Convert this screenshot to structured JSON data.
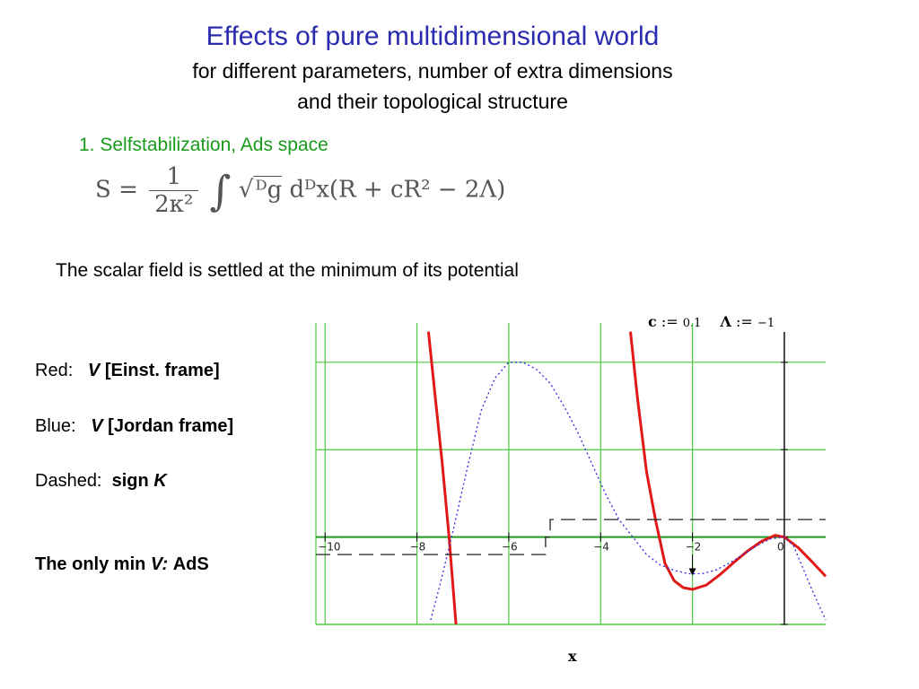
{
  "slide": {
    "title": "Effects of pure multidimensional world",
    "subtitle_line1": "for different parameters, number of extra dimensions",
    "subtitle_line2": "and their topological structure",
    "section": "1. Selfstabilization, Ads space",
    "formula": {
      "lhs": "S =",
      "numerator": "1",
      "denominator": "2κ²",
      "integral": "∫",
      "root": "ᴰg",
      "body": "dᴰx(R + cR² − 2Λ)"
    },
    "statement": "The scalar field is settled at the minimum of its potential",
    "legend": {
      "red_label": "Red:",
      "red_var": "V",
      "red_desc": "[Einst. frame]",
      "blue_label": "Blue:",
      "blue_var": "V",
      "blue_desc": "[Jordan frame]",
      "dashed_label": "Dashed:",
      "dashed_desc": "sign",
      "dashed_var": "K",
      "conclusion_prefix": "The only  min",
      "conclusion_var": "V:",
      "conclusion_suffix": "AdS"
    },
    "params": {
      "c_name": "c",
      "c_assign": ":=",
      "c_value": "0.1",
      "lambda_name": "Λ",
      "lambda_assign": ":=",
      "lambda_value": "−1"
    }
  },
  "chart_data": {
    "type": "line",
    "xlabel": "x",
    "xlim": [
      -10.2,
      0.9
    ],
    "ylim": [
      -1.0,
      2.45
    ],
    "x_ticks": [
      {
        "v": -10,
        "label": "−10"
      },
      {
        "v": -8,
        "label": "−8"
      },
      {
        "v": -6,
        "label": "−6"
      },
      {
        "v": -4,
        "label": "−4"
      },
      {
        "v": -2,
        "label": "−2"
      },
      {
        "v": 0,
        "label": "0"
      }
    ],
    "y_grid": [
      -1,
      1,
      2
    ],
    "colors": {
      "red": "#e01818",
      "blue": "#2a2ae0",
      "grid": "#4ccc3c",
      "dashed": "#222222"
    },
    "series": [
      {
        "name": "V [Einst. frame]",
        "color": "#e01818",
        "style": "solid",
        "segments": [
          {
            "x": [
              -7.75,
              -7.6,
              -7.45,
              -7.3,
              -7.15
            ],
            "y": [
              2.35,
              1.6,
              0.85,
              0.0,
              -1.0
            ]
          },
          {
            "x": [
              -3.35,
              -3.2,
              -3.0,
              -2.8,
              -2.6,
              -2.4,
              -2.2,
              -2.0,
              -1.7,
              -1.4,
              -1.1,
              -0.8,
              -0.5,
              -0.2,
              0.0,
              0.3,
              0.6,
              0.9
            ],
            "y": [
              2.35,
              1.6,
              0.75,
              0.18,
              -0.3,
              -0.5,
              -0.58,
              -0.6,
              -0.55,
              -0.43,
              -0.29,
              -0.16,
              -0.05,
              0.02,
              0.0,
              -0.12,
              -0.28,
              -0.45
            ]
          }
        ]
      },
      {
        "name": "V [Jordan frame]",
        "color": "#2a2ae0",
        "style": "dotted",
        "segments": [
          {
            "x": [
              -7.7,
              -7.5,
              -7.2,
              -6.9,
              -6.6,
              -6.3,
              -6.0,
              -5.7,
              -5.4,
              -5.1,
              -4.8,
              -4.5,
              -4.2,
              -3.9,
              -3.6,
              -3.3,
              -3.0,
              -2.7,
              -2.4,
              -2.1,
              -1.8,
              -1.5,
              -1.2,
              -0.9,
              -0.6,
              -0.3,
              0.0,
              0.2,
              0.4,
              0.6,
              0.9
            ],
            "y": [
              -0.95,
              -0.55,
              0.1,
              0.8,
              1.45,
              1.82,
              2.0,
              2.0,
              1.92,
              1.76,
              1.5,
              1.2,
              0.85,
              0.5,
              0.2,
              0.0,
              -0.2,
              -0.32,
              -0.38,
              -0.42,
              -0.42,
              -0.38,
              -0.3,
              -0.2,
              -0.1,
              -0.02,
              0.0,
              -0.1,
              -0.35,
              -0.6,
              -0.95
            ]
          }
        ]
      },
      {
        "name": "sign K",
        "color": "#222222",
        "style": "dashed",
        "segments": [
          {
            "x": [
              -10.2,
              -5.2,
              -5.2,
              -5.1,
              -5.1,
              0.9
            ],
            "y": [
              -0.2,
              -0.2,
              0.0,
              0.0,
              0.2,
              0.2
            ]
          }
        ]
      }
    ]
  }
}
